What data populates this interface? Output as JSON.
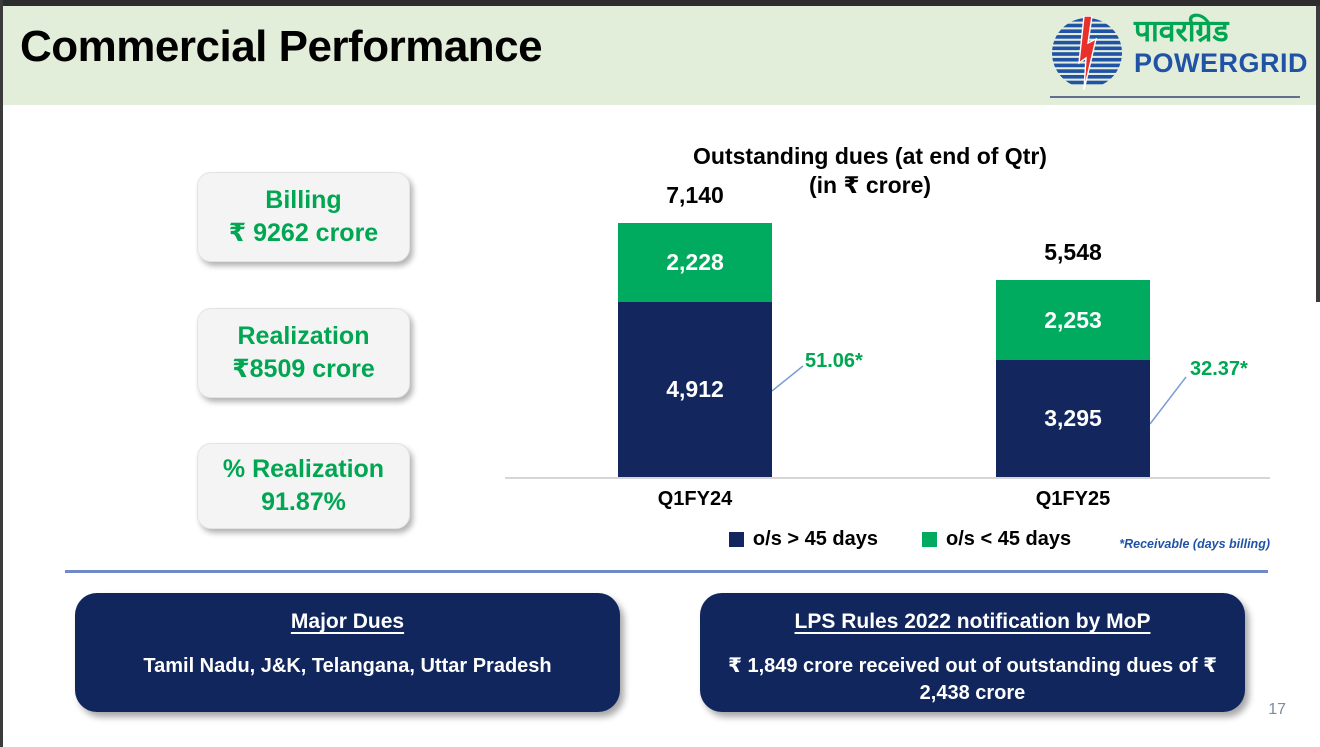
{
  "slide": {
    "title": "Commercial Performance",
    "page_number": "17"
  },
  "logo": {
    "hindi": "पावरग्रिड",
    "english": "POWERGRID"
  },
  "metrics": [
    {
      "label": "Billing",
      "value": "₹ 9262 crore"
    },
    {
      "label": "Realization",
      "value": "₹8509 crore"
    },
    {
      "label": "% Realization",
      "value": "91.87%"
    }
  ],
  "chart_data": {
    "type": "bar",
    "stacked": true,
    "title": "Outstanding dues (at end of Qtr)",
    "subtitle": "(in ₹ crore)",
    "categories": [
      "Q1FY24",
      "Q1FY25"
    ],
    "series": [
      {
        "name": "o/s > 45 days",
        "color": "#13275e",
        "values": [
          4912,
          3295
        ],
        "labels": [
          "4,912",
          "3,295"
        ]
      },
      {
        "name": "o/s < 45 days",
        "color": "#00ab5f",
        "values": [
          2228,
          2253
        ],
        "labels": [
          "2,228",
          "2,253"
        ]
      }
    ],
    "totals": [
      "7,140",
      "5,548"
    ],
    "annotations": [
      "51.06*",
      "32.37*"
    ],
    "footnote": "*Receivable (days billing)",
    "legend_position": "bottom",
    "ylim": [
      0,
      7500
    ],
    "grid": false
  },
  "callouts": [
    {
      "heading": "Major Dues",
      "body": "Tamil Nadu, J&K, Telangana, Uttar Pradesh"
    },
    {
      "heading": "LPS Rules 2022 notification by MoP",
      "body": "₹ 1,849 crore received out of outstanding dues of ₹ 2,438 crore"
    }
  ],
  "colors": {
    "header_band": "#e3eeda",
    "accent_green": "#00a651",
    "navy": "#10265c",
    "powergrid_blue": "#2053a6",
    "divider_blue": "#7189c7",
    "leader_line": "#7a9cd8"
  }
}
